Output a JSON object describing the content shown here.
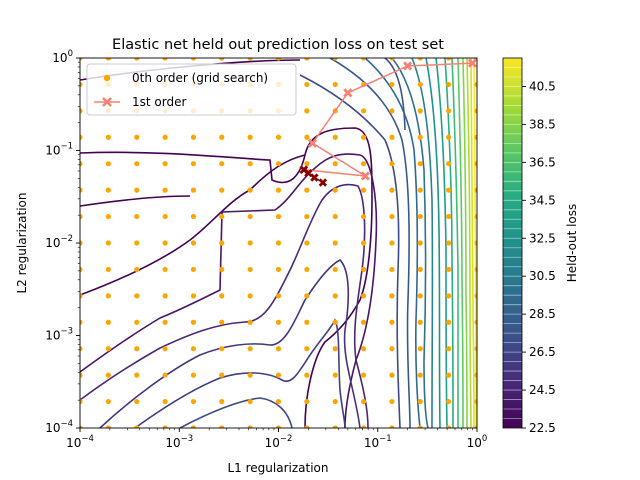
{
  "chart_data": {
    "type": "contour",
    "title": "Elastic net held out prediction loss on test set",
    "xlabel": "L1 regularization",
    "ylabel": "L2 regularization",
    "xscale": "log",
    "yscale": "log",
    "xlim": [
      0.0001,
      1
    ],
    "ylim": [
      0.0001,
      1
    ],
    "x_ticks": [
      0.0001,
      0.001,
      0.01,
      0.1,
      1
    ],
    "y_ticks": [
      0.0001,
      0.001,
      0.01,
      0.1,
      1
    ],
    "x_tick_labels": [
      {
        "base": "10",
        "exp": "−4"
      },
      {
        "base": "10",
        "exp": "−3"
      },
      {
        "base": "10",
        "exp": "−2"
      },
      {
        "base": "10",
        "exp": "−1"
      },
      {
        "base": "10",
        "exp": "0"
      }
    ],
    "y_tick_labels": [
      {
        "base": "10",
        "exp": "−4"
      },
      {
        "base": "10",
        "exp": "−3"
      },
      {
        "base": "10",
        "exp": "−2"
      },
      {
        "base": "10",
        "exp": "−1"
      },
      {
        "base": "10",
        "exp": "0"
      }
    ],
    "grid": false,
    "legend_position": "top-left",
    "legend": [
      {
        "label": "0th order (grid search)",
        "marker": "circle",
        "color": "#ffa500"
      },
      {
        "label": "1st order",
        "marker": "x",
        "color": "#fa8072"
      }
    ],
    "colorbar": {
      "label": "Held-out loss",
      "min": 22.5,
      "max": 42,
      "ticks": [
        22.5,
        24.5,
        26.5,
        28.5,
        30.5,
        32.5,
        34.5,
        36.5,
        38.5,
        40.5
      ],
      "tick_labels": [
        "22.5",
        "24.5",
        "26.5",
        "28.5",
        "30.5",
        "32.5",
        "34.5",
        "36.5",
        "38.5",
        "40.5"
      ],
      "colormap": "viridis"
    },
    "grid_search": {
      "color": "#ffa500",
      "x_values": [
        0.0001,
        0.000193,
        0.000373,
        0.00072,
        0.00139,
        0.00268,
        0.00518,
        0.01,
        0.0193,
        0.0373,
        0.072,
        0.139,
        0.268,
        0.518,
        1
      ],
      "y_values": [
        0.0001,
        0.000193,
        0.000373,
        0.00072,
        0.00139,
        0.00268,
        0.00518,
        0.01,
        0.0193,
        0.0373,
        0.072,
        0.139,
        0.268,
        0.518,
        1
      ]
    },
    "first_order_path": {
      "color": "#fa8072",
      "points": [
        {
          "x": 0.9,
          "y": 0.88
        },
        {
          "x": 0.2,
          "y": 0.82
        },
        {
          "x": 0.05,
          "y": 0.42
        },
        {
          "x": 0.022,
          "y": 0.12
        },
        {
          "x": 0.075,
          "y": 0.053
        },
        {
          "x": 0.018,
          "y": 0.062
        }
      ]
    },
    "dark_path": {
      "color": "#8b0000",
      "points": [
        {
          "x": 0.018,
          "y": 0.062
        },
        {
          "x": 0.02,
          "y": 0.057
        },
        {
          "x": 0.023,
          "y": 0.051
        },
        {
          "x": 0.028,
          "y": 0.045
        }
      ]
    }
  }
}
